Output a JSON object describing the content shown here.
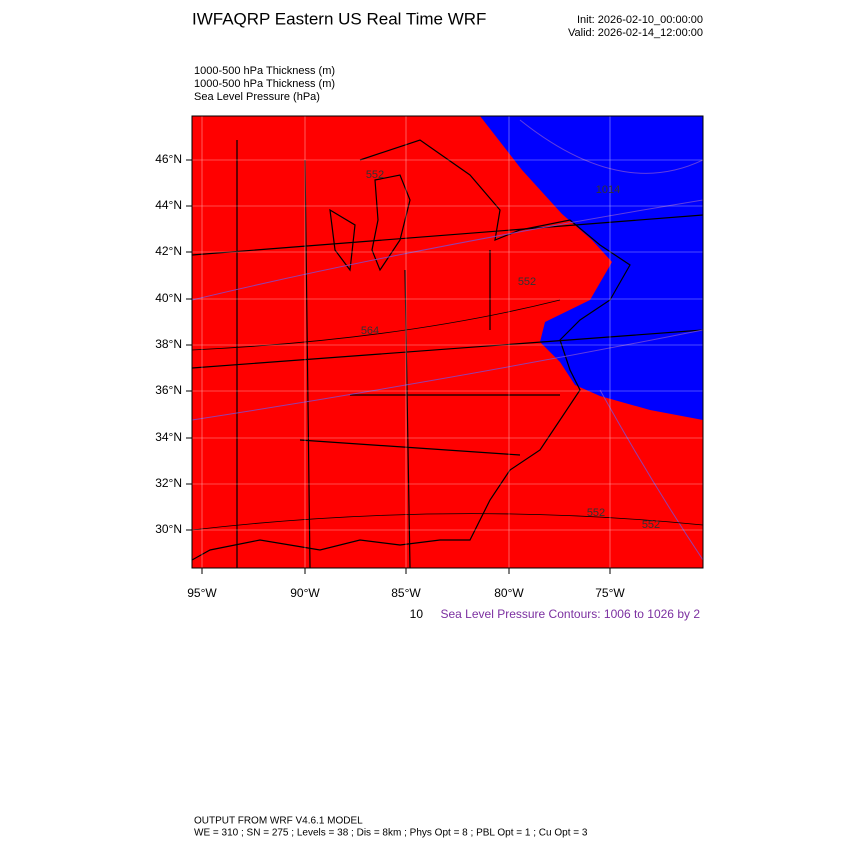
{
  "header": {
    "title": "IWFAQRP Eastern US Real Time WRF",
    "init": "Init: 2026-02-10_00:00:00",
    "valid": "Valid: 2026-02-14_12:00:00"
  },
  "fields": [
    "1000-500 hPa Thickness   (m)",
    "1000-500 hPa Thickness   (m)",
    "Sea Level Pressure   (hPa)"
  ],
  "map": {
    "lat_labels": [
      "46°N",
      "44°N",
      "42°N",
      "40°N",
      "38°N",
      "36°N",
      "34°N",
      "32°N",
      "30°N"
    ],
    "lon_labels": [
      "95°W",
      "90°W",
      "85°W",
      "80°W",
      "75°W"
    ],
    "contour_labels": [
      "552",
      "1014",
      "552",
      "564",
      "552",
      "552"
    ]
  },
  "contour_note": {
    "prefix": "10",
    "text": "Sea Level Pressure Contours: 1006 to 1026 by 2"
  },
  "footer": {
    "line1": "OUTPUT FROM WRF V4.6.1 MODEL",
    "line2": "WE = 310 ; SN = 275 ; Levels = 38 ; Dis = 8km ; Phys Opt = 8 ; PBL Opt = 1 ; Cu Opt = 3"
  }
}
